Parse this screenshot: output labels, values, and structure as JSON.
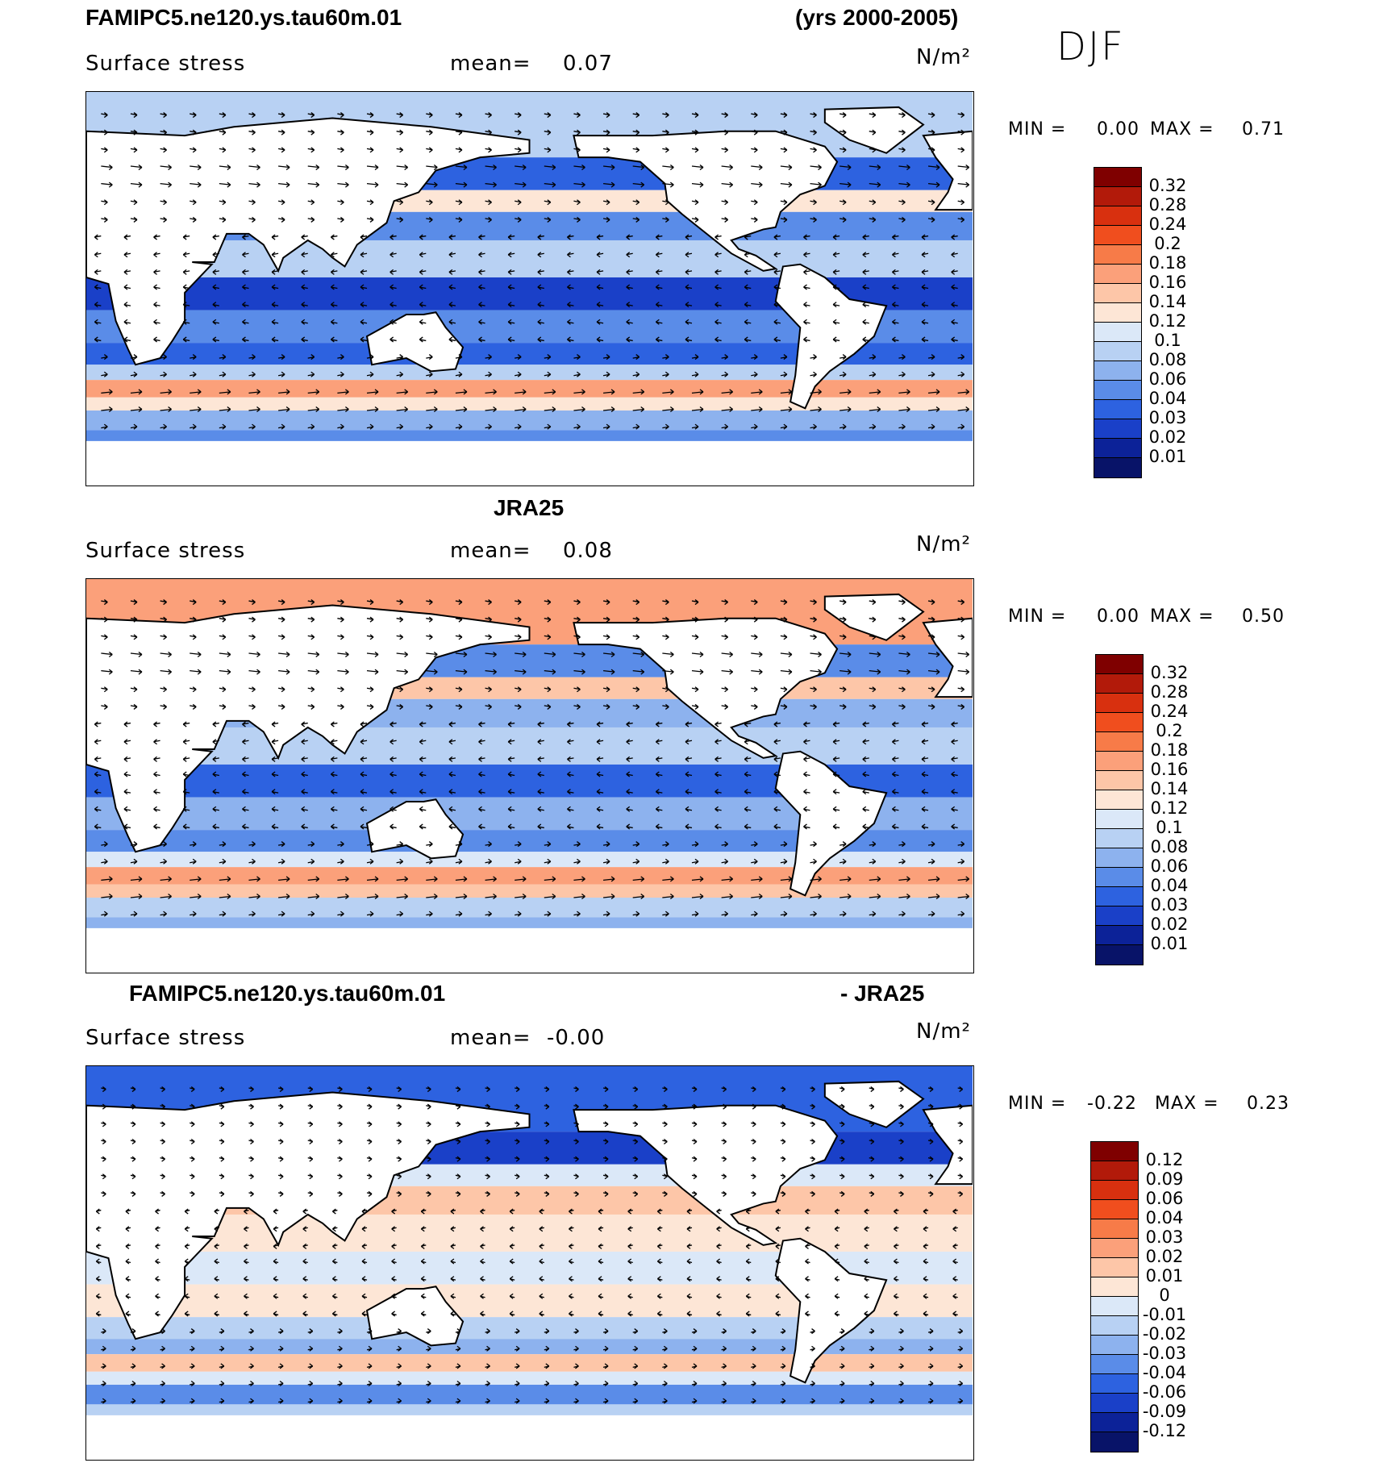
{
  "header": {
    "model_name": "FAMIPC5.ne120.ys.tau60m.01",
    "years": "(yrs 2000-2005)",
    "season": "DJF"
  },
  "panels": [
    {
      "title_left": "FAMIPC5.ne120.ys.tau60m.01",
      "title_right": "",
      "variable": "Surface stress",
      "mean_label": "mean=",
      "mean_value": "0.07",
      "units": "N/m²",
      "min_label": "MIN =",
      "min_value": "0.00",
      "max_label": "MAX =",
      "max_value": "0.71",
      "colorbar_ticks": [
        "0.32",
        "0.28",
        "0.24",
        "0.2",
        "0.18",
        "0.16",
        "0.14",
        "0.12",
        "0.1",
        "0.08",
        "0.06",
        "0.04",
        "0.03",
        "0.02",
        "0.01"
      ]
    },
    {
      "title_left": "JRA25",
      "title_right": "",
      "variable": "Surface stress",
      "mean_label": "mean=",
      "mean_value": "0.08",
      "units": "N/m²",
      "min_label": "MIN =",
      "min_value": "0.00",
      "max_label": "MAX =",
      "max_value": "0.50",
      "colorbar_ticks": [
        "0.32",
        "0.28",
        "0.24",
        "0.2",
        "0.18",
        "0.16",
        "0.14",
        "0.12",
        "0.1",
        "0.08",
        "0.06",
        "0.04",
        "0.03",
        "0.02",
        "0.01"
      ]
    },
    {
      "title_left": "FAMIPC5.ne120.ys.tau60m.01",
      "title_right": "- JRA25",
      "variable": "Surface stress",
      "mean_label": "mean=",
      "mean_value": "-0.00",
      "units": "N/m²",
      "min_label": "MIN =",
      "min_value": "-0.22",
      "max_label": "MAX =",
      "max_value": "0.23",
      "colorbar_ticks": [
        "0.12",
        "0.09",
        "0.06",
        "0.04",
        "0.03",
        "0.02",
        "0.01",
        "0",
        "-0.01",
        "-0.02",
        "-0.03",
        "-0.04",
        "-0.06",
        "-0.09",
        "-0.12"
      ]
    }
  ],
  "colors": {
    "levels": [
      "#7f0000",
      "#b21a0a",
      "#d8300f",
      "#f04e1e",
      "#f77b48",
      "#fba07a",
      "#fdc6a8",
      "#fde6d6",
      "#dbe8f8",
      "#b8d1f3",
      "#8db2ee",
      "#5a8ce8",
      "#2d62e0",
      "#1a40c8",
      "#0c2298",
      "#081368"
    ]
  }
}
